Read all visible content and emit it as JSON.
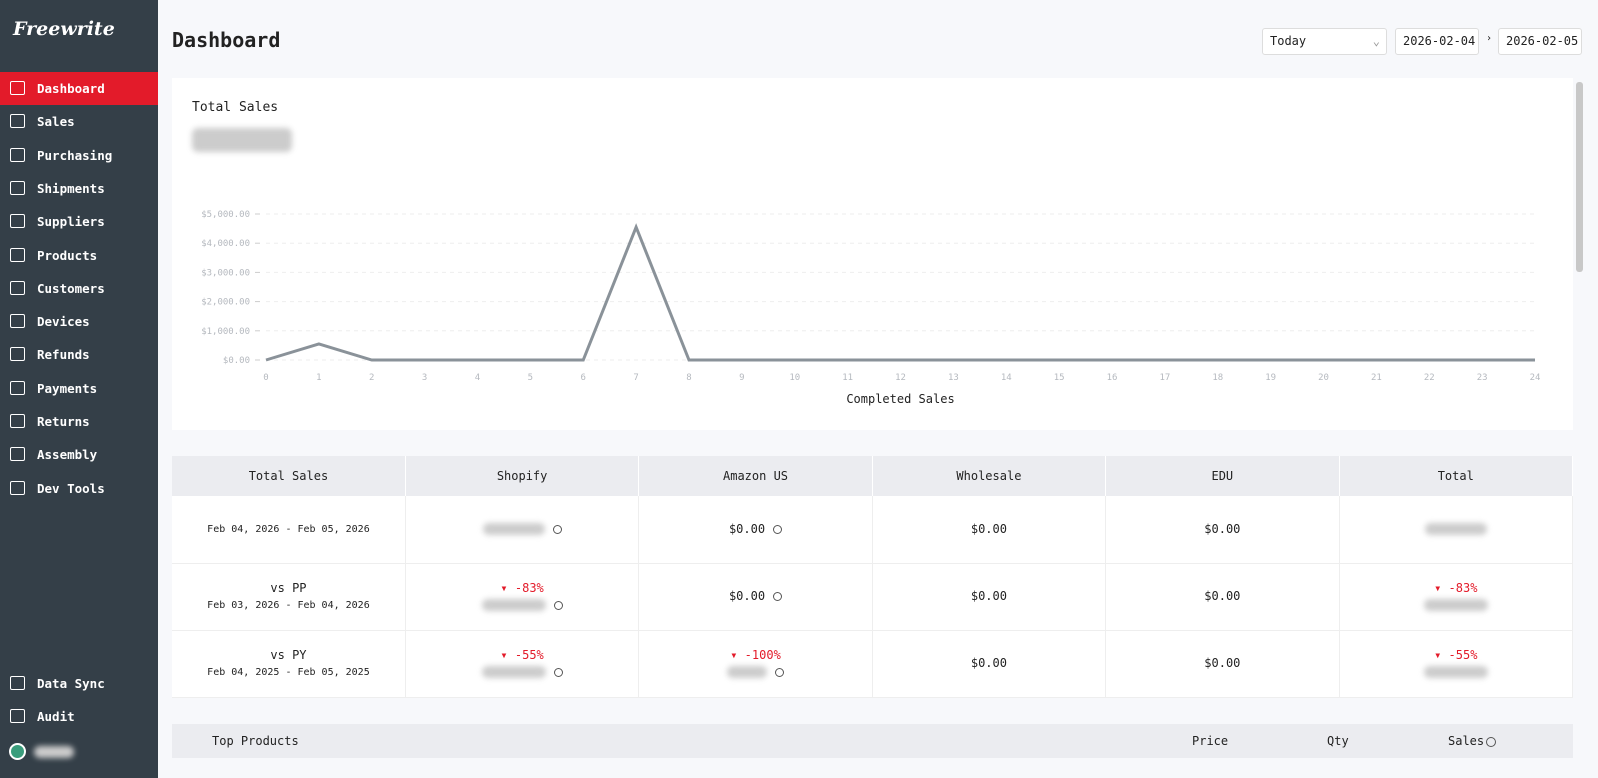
{
  "sidebar": {
    "logo": "Freewrite",
    "nav": [
      "Dashboard",
      "Sales",
      "Purchasing",
      "Shipments",
      "Suppliers",
      "Products",
      "Customers",
      "Devices",
      "Refunds",
      "Payments",
      "Returns",
      "Assembly",
      "Dev Tools"
    ],
    "bottom": [
      "Data Sync",
      "Audit"
    ]
  },
  "header": {
    "title": "Dashboard",
    "range": "Today",
    "start": "2026-02-04",
    "end": "2026-02-05"
  },
  "chart_data": {
    "type": "line",
    "title": "Total Sales",
    "x_label": "Completed Sales",
    "x": [
      0,
      1,
      2,
      3,
      4,
      5,
      6,
      7,
      8,
      9,
      10,
      11,
      12,
      13,
      14,
      15,
      16,
      17,
      18,
      19,
      20,
      21,
      22,
      23,
      24
    ],
    "values": [
      0,
      550,
      0,
      0,
      0,
      0,
      0,
      4550,
      0,
      0,
      0,
      0,
      0,
      0,
      0,
      0,
      0,
      0,
      0,
      0,
      0,
      0,
      0,
      0,
      0
    ],
    "color": "#8a9299",
    "xlim": [
      0,
      24
    ],
    "xticks": [
      0,
      1,
      2,
      3,
      4,
      5,
      6,
      7,
      8,
      9,
      10,
      11,
      12,
      13,
      14,
      15,
      16,
      17,
      18,
      19,
      20,
      21,
      22,
      23,
      24
    ],
    "ylim": [
      0,
      5000
    ],
    "yticks": [
      {
        "value": 0,
        "label": "$0.00"
      },
      {
        "value": 1000,
        "label": "$1,000.00"
      },
      {
        "value": 2000,
        "label": "$2,000.00"
      },
      {
        "value": 3000,
        "label": "$3,000.00"
      },
      {
        "value": 4000,
        "label": "$4,000.00"
      },
      {
        "value": 5000,
        "label": "$5,000.00"
      }
    ],
    "grid": true
  },
  "table": {
    "headers": [
      "Total Sales",
      "Shopify",
      "Amazon US",
      "Wholesale",
      "EDU",
      "Total"
    ],
    "rows": [
      {
        "dates": "Feb 04, 2026 - Feb 05, 2026",
        "amazon": "$0.00",
        "wholesale": "$0.00",
        "edu": "$0.00"
      },
      {
        "label": "vs PP",
        "dates": "Feb 03, 2026 - Feb 04, 2026",
        "shopify_change": "-83%",
        "amazon": "$0.00",
        "wholesale": "$0.00",
        "edu": "$0.00",
        "total_change": "-83%"
      },
      {
        "label": "vs PY",
        "dates": "Feb 04, 2025 - Feb 05, 2025",
        "shopify_change": "-55%",
        "amazon_change": "-100%",
        "wholesale": "$0.00",
        "edu": "$0.00",
        "total_change": "-55%"
      }
    ]
  },
  "top_products": {
    "headers": [
      "Top Products",
      "Price",
      "Qty",
      "Sales"
    ]
  }
}
